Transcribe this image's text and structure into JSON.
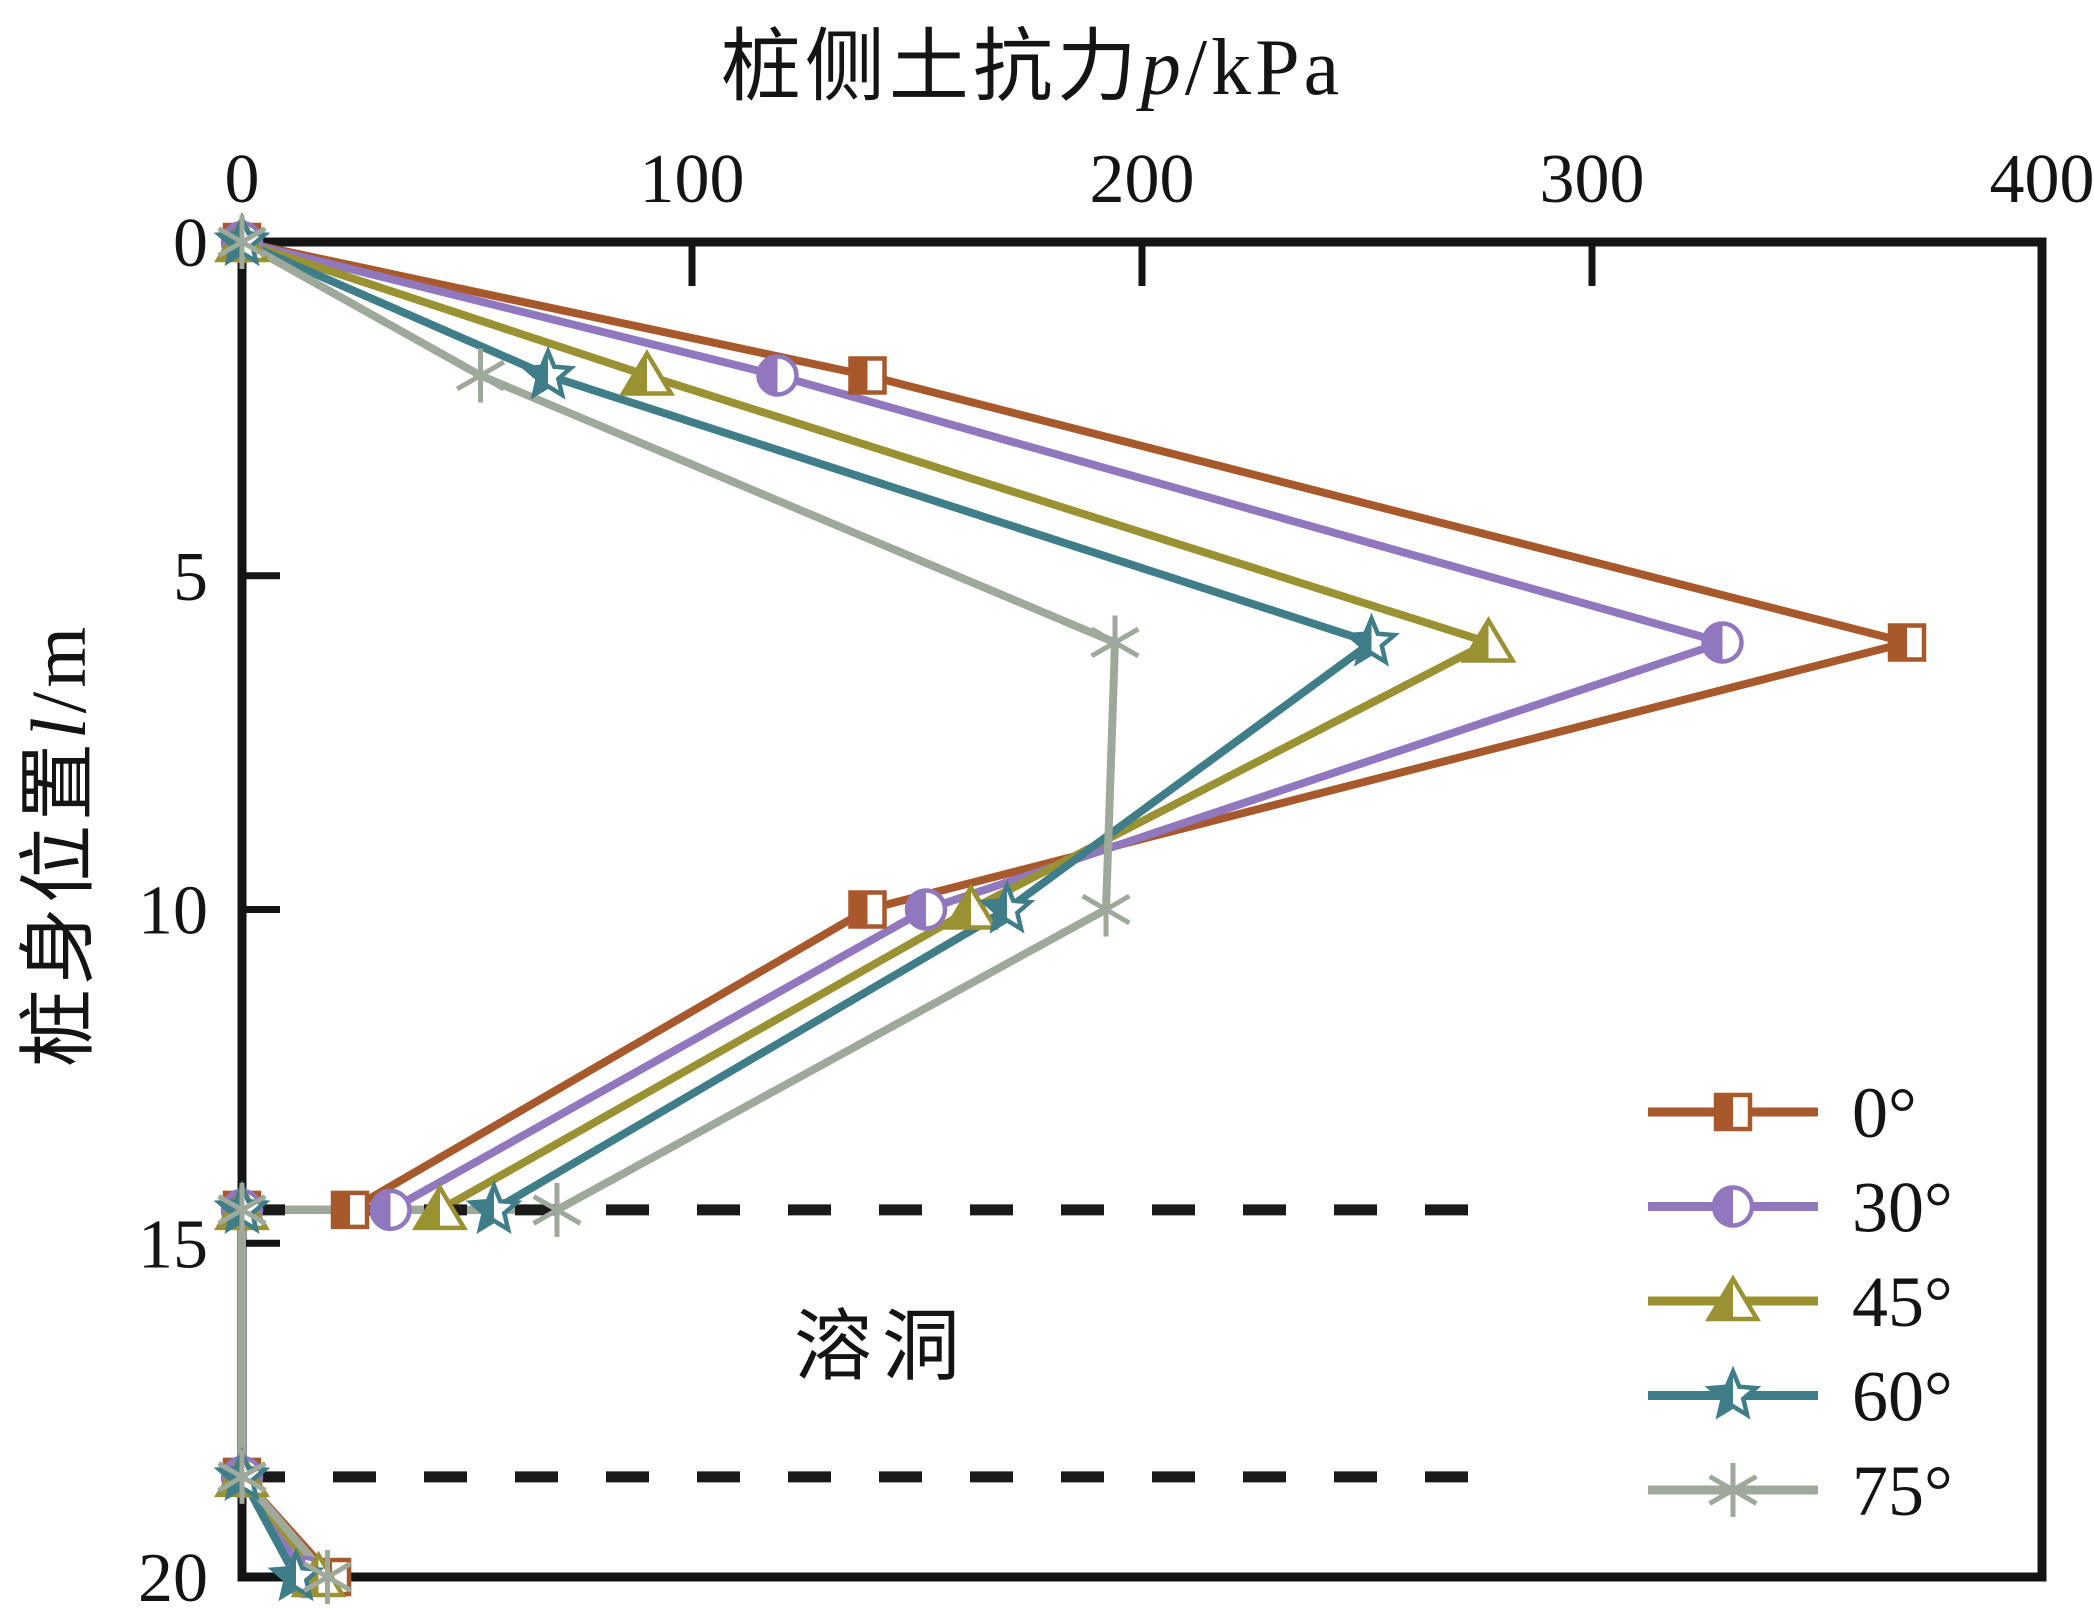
{
  "chart_data": {
    "type": "line",
    "title": "桩侧土抗力p/kPa",
    "xlabel": "桩侧土抗力p/kPa",
    "ylabel": "桩身位置l/m",
    "titles": {
      "x_prefix": "桩侧土抗力",
      "x_var": "p",
      "x_unit": "/kPa",
      "y_prefix": "桩身位置",
      "y_var": "l",
      "y_unit": "/m"
    },
    "x_axis": {
      "min": 0,
      "max": 400,
      "ticks": [
        0,
        100,
        200,
        300,
        400
      ],
      "position": "top",
      "grid": false
    },
    "y_axis": {
      "min": 0,
      "max": 20,
      "ticks": [
        0,
        5,
        10,
        15,
        20
      ],
      "inverted": true,
      "grid": false
    },
    "legend_position": "lower-right-inside",
    "series": [
      {
        "name": "0°",
        "marker": "half-square",
        "color": "#a8592c",
        "points": [
          [
            0,
            0
          ],
          [
            139,
            2
          ],
          [
            370,
            6
          ],
          [
            139,
            10
          ],
          [
            24,
            14.5
          ],
          [
            0,
            14.5
          ],
          [
            0,
            18.5
          ],
          [
            20,
            20
          ]
        ]
      },
      {
        "name": "30°",
        "marker": "half-circle",
        "color": "#9077be",
        "points": [
          [
            0,
            0
          ],
          [
            119,
            2
          ],
          [
            329,
            6
          ],
          [
            152,
            10
          ],
          [
            33,
            14.5
          ],
          [
            0,
            14.5
          ],
          [
            0,
            18.5
          ],
          [
            14,
            20
          ]
        ]
      },
      {
        "name": "45°",
        "marker": "half-triangle",
        "color": "#9a9133",
        "points": [
          [
            0,
            0
          ],
          [
            90,
            2
          ],
          [
            277,
            6
          ],
          [
            162,
            10
          ],
          [
            44,
            14.5
          ],
          [
            0,
            14.5
          ],
          [
            0,
            18.5
          ],
          [
            17,
            20
          ]
        ]
      },
      {
        "name": "60°",
        "marker": "half-star",
        "color": "#3f7e88",
        "points": [
          [
            0,
            0
          ],
          [
            68,
            2
          ],
          [
            251,
            6
          ],
          [
            170,
            10
          ],
          [
            56,
            14.5
          ],
          [
            0,
            14.5
          ],
          [
            0,
            18.5
          ],
          [
            12,
            20
          ]
        ]
      },
      {
        "name": "75°",
        "marker": "asterisk",
        "color": "#9ea99b",
        "points": [
          [
            0,
            0
          ],
          [
            53,
            2
          ],
          [
            194,
            6
          ],
          [
            192,
            10
          ],
          [
            70,
            14.5
          ],
          [
            0,
            14.5
          ],
          [
            0,
            18.5
          ],
          [
            19,
            20
          ]
        ]
      }
    ],
    "annotations": {
      "cave_label": "溶洞",
      "dashed_lines_depths": [
        14.5,
        18.5
      ],
      "dashed_line_x_extent": [
        0,
        275
      ]
    },
    "colors": {
      "axis": "#141414",
      "dashed_line": "#1a1a1a"
    }
  }
}
